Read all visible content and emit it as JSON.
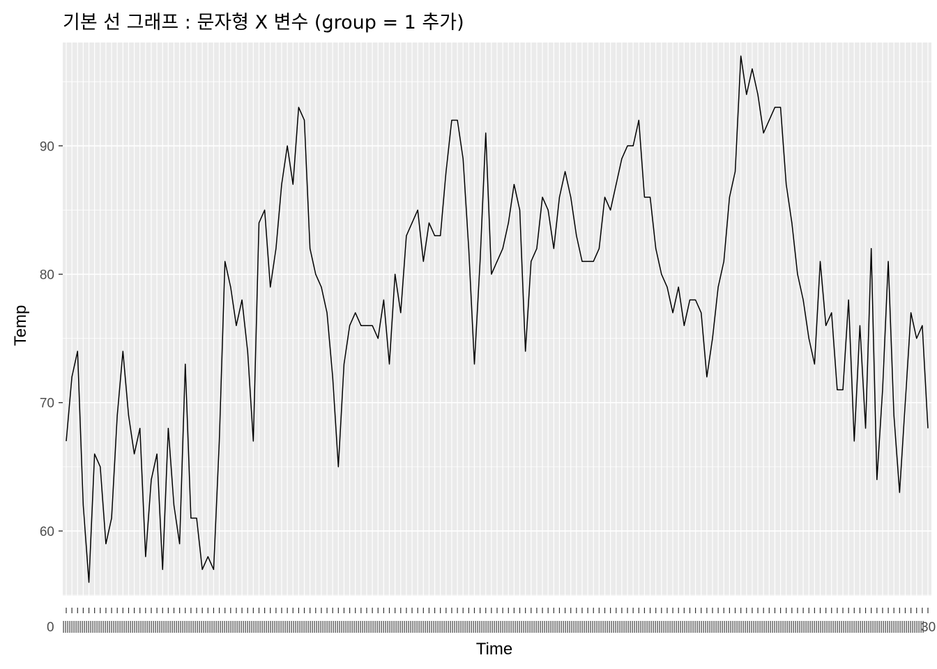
{
  "chart_data": {
    "type": "line",
    "title": "기본 선 그래프 : 문자형 X 변수 (group = 1 추가)",
    "xlabel": "Time",
    "ylabel": "Temp",
    "y_ticks": [
      "60",
      "70",
      "80",
      "90"
    ],
    "ylim": [
      54.95,
      98.05
    ],
    "x_labels_note": "153 overlapping category labels",
    "x_label_start": "0",
    "x_label_end": "30",
    "panel_background": "#ebebeb",
    "gridline_color": "#ffffff",
    "line_color": "#000000",
    "grid": true,
    "legend": "none",
    "values": [
      67,
      72,
      74,
      62,
      56,
      66,
      65,
      59,
      61,
      69,
      74,
      69,
      66,
      68,
      58,
      64,
      66,
      57,
      68,
      62,
      59,
      73,
      61,
      61,
      57,
      58,
      57,
      67,
      81,
      79,
      76,
      78,
      74,
      67,
      84,
      85,
      79,
      82,
      87,
      90,
      87,
      93,
      92,
      82,
      80,
      79,
      77,
      72,
      65,
      73,
      76,
      77,
      76,
      76,
      76,
      75,
      78,
      73,
      80,
      77,
      83,
      84,
      85,
      81,
      84,
      83,
      83,
      88,
      92,
      92,
      89,
      82,
      73,
      81,
      91,
      80,
      81,
      82,
      84,
      87,
      85,
      74,
      81,
      82,
      86,
      85,
      82,
      86,
      88,
      86,
      83,
      81,
      81,
      81,
      82,
      86,
      85,
      87,
      89,
      90,
      90,
      92,
      86,
      86,
      82,
      80,
      79,
      77,
      79,
      76,
      78,
      78,
      77,
      72,
      75,
      79,
      81,
      86,
      88,
      97,
      94,
      96,
      94,
      91,
      92,
      93,
      93,
      87,
      84,
      80,
      78,
      75,
      73,
      81,
      76,
      77,
      71,
      71,
      78,
      67,
      76,
      68,
      82,
      64,
      71,
      81,
      69,
      63,
      70,
      77,
      75,
      76,
      68
    ]
  }
}
